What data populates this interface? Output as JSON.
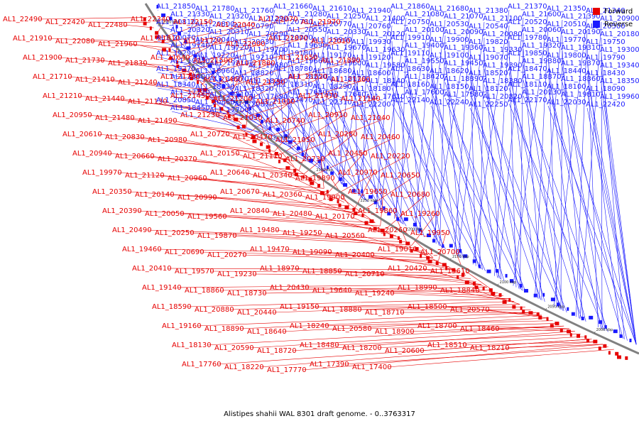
{
  "caption": "Alistipes shahii WAL 8301 draft genome. - 0..3763317",
  "legend": [
    {
      "label": "Forward",
      "color": "#e60000"
    },
    {
      "label": "Reverse",
      "color": "#1a1aff"
    }
  ],
  "colors": {
    "forward": "#e60000",
    "reverse": "#1a1aff",
    "backbone": "#808080"
  },
  "chart_data": {
    "type": "circular-genome-map",
    "title": "Alistipes shahii WAL 8301 draft genome. - 0..3763317",
    "backbone_ticks": [
      "2500 kbp",
      "2450 kbp",
      "2400 kbp",
      "2350 kbp",
      "2300 kbp",
      "2250 kbp",
      "2200 kbp",
      "2150 kbp",
      "2100 kbp",
      "2050 kbp",
      "2000 kbp"
    ],
    "reverse_labels": [
      "AL1_21850",
      "AL1_21780",
      "AL1_21760",
      "AL1_21660",
      "AL1_21610",
      "AL1_21940",
      "AL1_21860",
      "AL1_21680",
      "AL1_21380",
      "AL1_21370",
      "AL1_21350",
      "AL1_21340",
      "AL1_21330",
      "AL1_21320",
      "AL1_21290",
      "AL1_21280",
      "AL1_21250",
      "AL1_21400",
      "AL1_21080",
      "AL1_21070",
      "AL1_21100",
      "AL1_21600",
      "AL1_21390",
      "AL1_20900",
      "AL1_20810",
      "AL1_20800",
      "AL1_20790",
      "AL1_20780",
      "AL1_20770",
      "AL1_20760",
      "AL1_20750",
      "AL1_20530",
      "AL1_20540",
      "AL1_20520",
      "AL1_20510",
      "AL1_20500",
      "AL1_20320",
      "AL1_20310",
      "AL1_20290",
      "AL1_20550",
      "AL1_20330",
      "AL1_20120",
      "AL1_20100",
      "AL1_20090",
      "AL1_20080",
      "AL1_20060",
      "AL1_20190",
      "AL1_20180",
      "AL1_20070",
      "AL1_20040",
      "AL1_20030",
      "AL1_20000",
      "AL1_19940",
      "AL1_19930",
      "AL1_19910",
      "AL1_19900",
      "AL1_19820",
      "AL1_19780",
      "AL1_19770",
      "AL1_19750",
      "AL1_19740",
      "AL1_19720",
      "AL1_19700",
      "AL1_19690",
      "AL1_19670",
      "AL1_19630",
      "AL1_19400",
      "AL1_19360",
      "AL1_19330",
      "AL1_19320",
      "AL1_19310",
      "AL1_19300",
      "AL1_19290",
      "AL1_19220",
      "AL1_19210",
      "AL1_19180",
      "AL1_19170",
      "AL1_19120",
      "AL1_19110",
      "AL1_19100",
      "AL1_19070",
      "AL1_19850",
      "AL1_19800",
      "AL1_19790",
      "AL1_19730",
      "AL1_19710",
      "AL1_19680",
      "AL1_19660",
      "AL1_19600",
      "AL1_19580",
      "AL1_19550",
      "AL1_19450",
      "AL1_19390",
      "AL1_19380",
      "AL1_19370",
      "AL1_19340",
      "AL1_19270",
      "AL1_18960",
      "AL1_18820",
      "AL1_18780",
      "AL1_18680",
      "AL1_18600",
      "AL1_18630",
      "AL1_18620",
      "AL1_18520",
      "AL1_18470",
      "AL1_18440",
      "AL1_18430",
      "AL1_18400",
      "AL1_18270",
      "AL1_18260",
      "AL1_18250",
      "AL1_18170",
      "AL1_18140",
      "AL1_18420",
      "AL1_18390",
      "AL1_18380",
      "AL1_18370",
      "AL1_18360",
      "AL1_18350",
      "AL1_18340",
      "AL1_18330",
      "AL1_18320",
      "AL1_18310",
      "AL1_18290",
      "AL1_18180",
      "AL1_18160",
      "AL1_18150",
      "AL1_18120",
      "AL1_18110",
      "AL1_18100",
      "AL1_18090",
      "AL1_17720",
      "AL1_17710",
      "AL1_17690",
      "AL1_17680",
      "AL1_17640",
      "AL1_17610",
      "AL1_17600",
      "AL1_17580",
      "AL1_20820",
      "AL1_20130",
      "AL1_19810",
      "AL1_19960",
      "AL1_20850",
      "AL1_20860",
      "AL1_20870",
      "AL1_22470",
      "AL1_22310",
      "AL1_22200",
      "AL1_22140",
      "AL1_22240",
      "AL1_22250",
      "AL1_22170",
      "AL1_22030",
      "AL1_22420",
      "AL1_18450",
      "AL1_17700"
    ],
    "forward_labels": [
      "AL1_22490",
      "AL1_22420",
      "AL1_22480",
      "AL1_22340",
      "AL1_22150",
      "AL1_22040",
      "AL1_22070",
      "AL1_21970",
      "AL1_21910",
      "AL1_22080",
      "AL1_21960",
      "AL1_21810",
      "AL1_21720",
      "AL1_22000",
      "AL1_21870",
      "AL1_22010",
      "AL1_21900",
      "AL1_21730",
      "AL1_21830",
      "AL1_21640",
      "AL1_21500",
      "AL1_21880",
      "AL1_21650",
      "AL1_21890",
      "AL1_21710",
      "AL1_21410",
      "AL1_21240",
      "AL1_21740",
      "AL1_21460",
      "AL1_21750",
      "AL1_21520",
      "AL1_21360",
      "AL1_21210",
      "AL1_21440",
      "AL1_21130",
      "AL1_21450",
      "AL1_21200",
      "AL1_21000",
      "AL1_21470",
      "AL1_21140",
      "AL1_20950",
      "AL1_21480",
      "AL1_21490",
      "AL1_21230",
      "AL1_21030",
      "AL1_20740",
      "AL1_20910",
      "AL1_21040",
      "AL1_20610",
      "AL1_20830",
      "AL1_20980",
      "AL1_20720",
      "AL1_20470",
      "AL1_21050",
      "AL1_20280",
      "AL1_20460",
      "AL1_20940",
      "AL1_20660",
      "AL1_20370",
      "AL1_20150",
      "AL1_21110",
      "AL1_20730",
      "AL1_20450",
      "AL1_20220",
      "AL1_19970",
      "AL1_21120",
      "AL1_20960",
      "AL1_20640",
      "AL1_20340",
      "AL1_19890",
      "AL1_20970",
      "AL1_20650",
      "AL1_20350",
      "AL1_20140",
      "AL1_20990",
      "AL1_20670",
      "AL1_20360",
      "AL1_19900",
      "AL1_19650",
      "AL1_20680",
      "AL1_20390",
      "AL1_20050",
      "AL1_19560",
      "AL1_20840",
      "AL1_20480",
      "AL1_20170",
      "AL1_19860",
      "AL1_19260",
      "AL1_20490",
      "AL1_20250",
      "AL1_19870",
      "AL1_19480",
      "AL1_19250",
      "AL1_20560",
      "AL1_20260",
      "AL1_19950",
      "AL1_19460",
      "AL1_20690",
      "AL1_20270",
      "AL1_19470",
      "AL1_19090",
      "AL1_20400",
      "AL1_19010",
      "AL1_20700",
      "AL1_20410",
      "AL1_19570",
      "AL1_19230",
      "AL1_18970",
      "AL1_18850",
      "AL1_20710",
      "AL1_20420",
      "AL1_19610",
      "AL1_19140",
      "AL1_18860",
      "AL1_18730",
      "AL1_20430",
      "AL1_19640",
      "AL1_19240",
      "AL1_18990",
      "AL1_18840",
      "AL1_18590",
      "AL1_20880",
      "AL1_20440",
      "AL1_19150",
      "AL1_18880",
      "AL1_18710",
      "AL1_18500",
      "AL1_20570",
      "AL1_19160",
      "AL1_18890",
      "AL1_18640",
      "AL1_18240",
      "AL1_20580",
      "AL1_18900",
      "AL1_18700",
      "AL1_18460",
      "AL1_18130",
      "AL1_20590",
      "AL1_18720",
      "AL1_18480",
      "AL1_18200",
      "AL1_20600",
      "AL1_18510",
      "AL1_18210",
      "AL1_17760",
      "AL1_18220",
      "AL1_17770",
      "AL1_17390",
      "AL1_17400"
    ]
  }
}
